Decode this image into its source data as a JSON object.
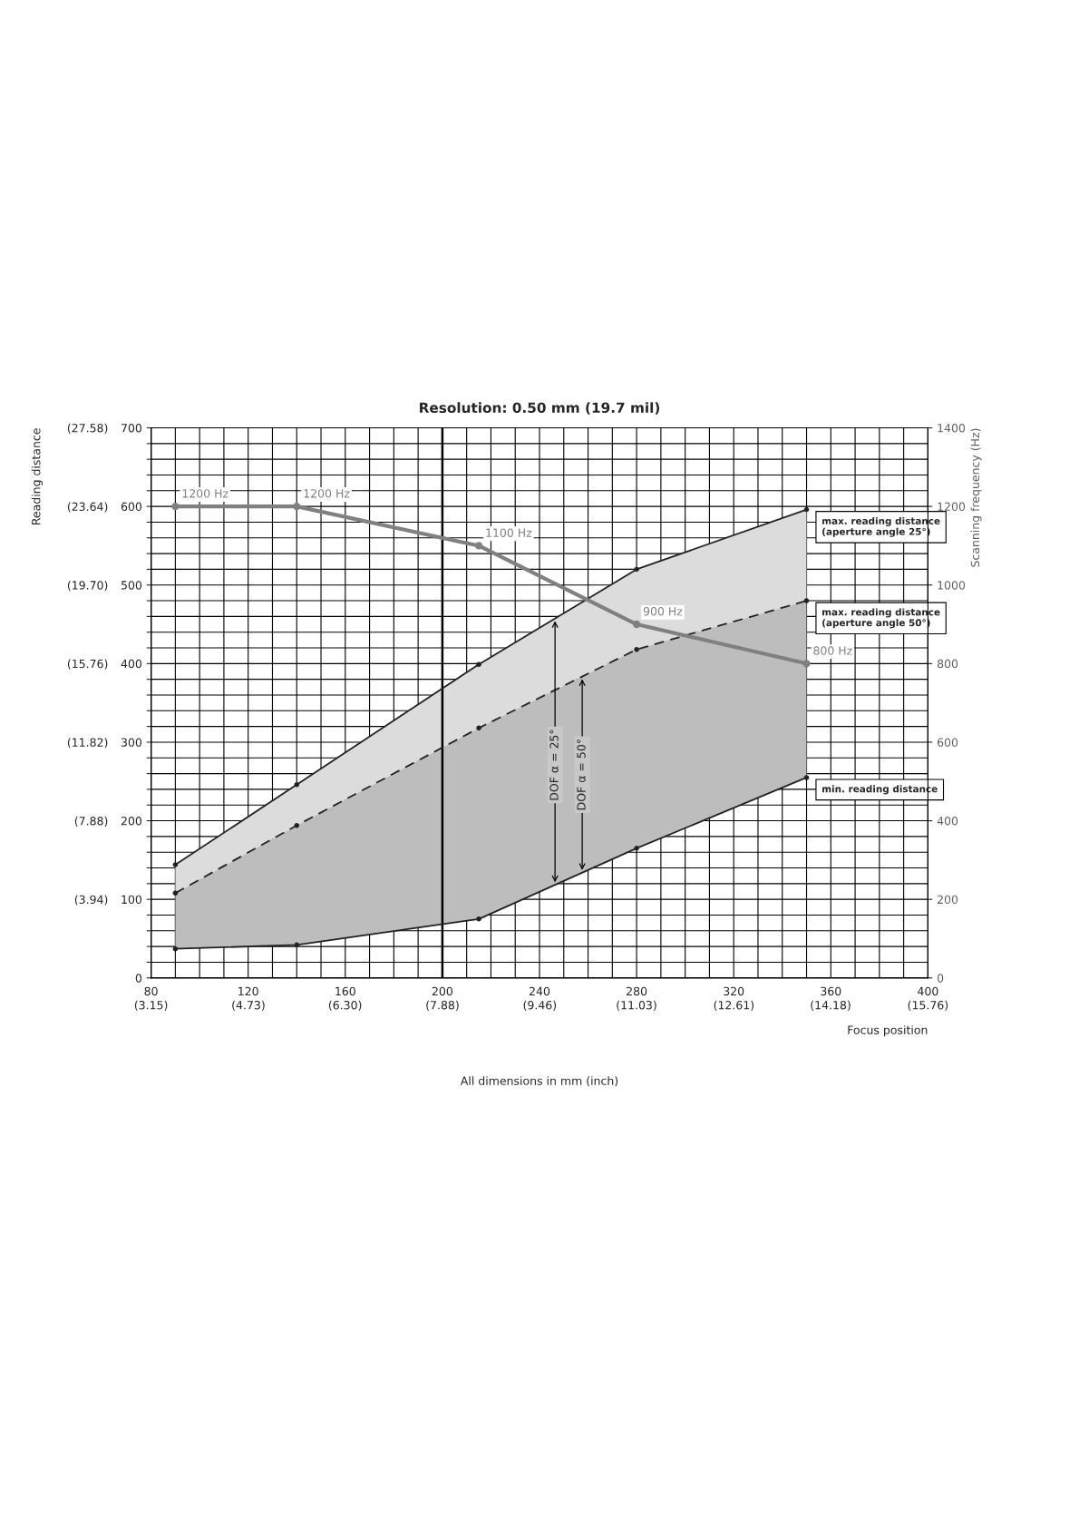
{
  "chart_data": {
    "type": "line",
    "title": "Resolution: 0.50 mm (19.7 mil)",
    "xlabel": "Focus position",
    "ylabel": "Reading distance",
    "y2label": "Scanning frequency (Hz)",
    "x": [
      90,
      140,
      215,
      280,
      350
    ],
    "series": [
      {
        "name": "max. reading distance (aperture angle 25°)",
        "color": "#222222",
        "values": [
          144,
          246,
          399,
          520,
          596
        ],
        "lower": [
          108,
          194,
          318,
          418,
          480
        ],
        "upper": [
          144,
          246,
          399,
          520,
          596
        ],
        "marker": "circle",
        "line_style": "solid"
      },
      {
        "name": "max. reading distance (aperture angle 50°)",
        "color": "#222222",
        "values": [
          108,
          194,
          318,
          418,
          480
        ],
        "lower": [
          37,
          42,
          75,
          165,
          255
        ],
        "upper": [
          108,
          194,
          318,
          418,
          480
        ],
        "marker": "circle",
        "line_style": "dashed"
      },
      {
        "name": "min. reading distance",
        "color": "#222222",
        "values": [
          37,
          42,
          75,
          165,
          255
        ],
        "marker": "circle",
        "line_style": "solid"
      },
      {
        "color": "#808080",
        "values": [
          1200,
          1200,
          1100,
          900,
          800
        ],
        "axis": "y2",
        "marker": "circle",
        "line_style": "solid",
        "value_labels": [
          "1200 Hz",
          "1200 Hz",
          "1100 Hz",
          "900 Hz",
          "800 Hz"
        ]
      }
    ],
    "xlim": [
      80,
      400
    ],
    "xticks": [
      80,
      {
        "value": 90,
        "label": null
      },
      {
        "value": 100,
        "label": null
      },
      {
        "value": 110,
        "label": null
      },
      120,
      {
        "value": 130,
        "label": null
      },
      {
        "value": 140,
        "label": null
      },
      {
        "value": 150,
        "label": null
      },
      160,
      {
        "value": 170,
        "label": null
      },
      {
        "value": 180,
        "label": null
      },
      {
        "value": 190,
        "label": null
      },
      200,
      {
        "value": 210,
        "label": null
      },
      {
        "value": 220,
        "label": null
      },
      {
        "value": 230,
        "label": null
      },
      240,
      {
        "value": 250,
        "label": null
      },
      {
        "value": 260,
        "label": null
      },
      {
        "value": 270,
        "label": null
      },
      280,
      {
        "value": 290,
        "label": null
      },
      {
        "value": 300,
        "label": null
      },
      {
        "value": 310,
        "label": null
      },
      320,
      {
        "value": 330,
        "label": null
      },
      {
        "value": 340,
        "label": null
      },
      {
        "value": 350,
        "label": null
      },
      360,
      {
        "value": 370,
        "label": null
      },
      {
        "value": 380,
        "label": null
      },
      {
        "value": 390,
        "label": null
      },
      400
    ],
    "x2lim": [
      3.15,
      15.76
    ],
    "x2ticks": [
      {
        "value": 3.15,
        "label": "(3.15)"
      },
      {
        "value": 4.73,
        "label": "(4.73)"
      },
      {
        "value": 6.3,
        "label": "(6.30)"
      },
      {
        "value": 7.88,
        "label": "(7.88)"
      },
      {
        "value": 9.46,
        "label": "(9.46)"
      },
      {
        "value": 11.03,
        "label": "(11.03)"
      },
      {
        "value": 12.61,
        "label": "(12.61)"
      },
      {
        "value": 14.18,
        "label": "(14.18)"
      },
      {
        "value": 15.76,
        "label": "(15.76)"
      }
    ],
    "ylim": [
      0,
      700
    ],
    "yticks": [
      0,
      {
        "value": 20,
        "label": null
      },
      {
        "value": 40,
        "label": null
      },
      {
        "value": 60,
        "label": null
      },
      {
        "value": 80,
        "label": null
      },
      100,
      {
        "value": 120,
        "label": null
      },
      {
        "value": 140,
        "label": null
      },
      {
        "value": 160,
        "label": null
      },
      {
        "value": 180,
        "label": null
      },
      200,
      {
        "value": 220,
        "label": null
      },
      {
        "value": 240,
        "label": null
      },
      {
        "value": 260,
        "label": null
      },
      {
        "value": 280,
        "label": null
      },
      300,
      {
        "value": 320,
        "label": null
      },
      {
        "value": 340,
        "label": null
      },
      {
        "value": 360,
        "label": null
      },
      {
        "value": 380,
        "label": null
      },
      400,
      {
        "value": 420,
        "label": null
      },
      {
        "value": 440,
        "label": null
      },
      {
        "value": 460,
        "label": null
      },
      {
        "value": 480,
        "label": null
      },
      500,
      {
        "value": 520,
        "label": null
      },
      {
        "value": 540,
        "label": null
      },
      {
        "value": 560,
        "label": null
      },
      {
        "value": 580,
        "label": null
      },
      600,
      {
        "value": 620,
        "label": null
      },
      {
        "value": 640,
        "label": null
      },
      {
        "value": 660,
        "label": null
      },
      {
        "value": 680,
        "label": null
      },
      700
    ],
    "y3lim": [
      0,
      27.58
    ],
    "y3ticks": [
      {
        "value": 3.94,
        "label": "(3.94)"
      },
      {
        "value": 7.88,
        "label": "(7.88)"
      },
      {
        "value": 11.82,
        "label": "(11.82)"
      },
      {
        "value": 15.76,
        "label": "(15.76)"
      },
      {
        "value": 19.7,
        "label": "(19.70)"
      },
      {
        "value": 23.64,
        "label": "(23.64)"
      },
      {
        "value": 27.58,
        "label": "(27.58)"
      }
    ],
    "y2lim": [
      0,
      1400
    ],
    "y2ticks": [
      0,
      200,
      400,
      600,
      800,
      1000,
      1200,
      1400
    ],
    "ref_lines": [
      {
        "axis": "x",
        "value": 200,
        "color": "#000000"
      }
    ],
    "annotations": [
      "DOF α = 25°",
      "DOF α = 50°",
      "All dimensions in mm (inch)"
    ],
    "grid": true,
    "legend": false
  }
}
